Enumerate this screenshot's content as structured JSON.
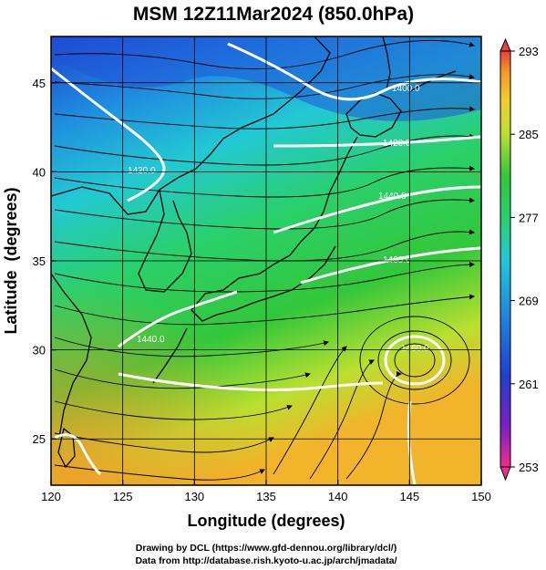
{
  "title": "MSM 12Z11Mar2024 (850.0hPa)",
  "axes": {
    "xlabel": "Longitude (degrees)",
    "ylabel": "Latitude  (degrees)",
    "x_ticks": [
      120,
      125,
      130,
      135,
      140,
      145,
      150
    ],
    "y_ticks": [
      25,
      30,
      35,
      40,
      45
    ],
    "xlim": [
      120,
      150
    ],
    "ylim": [
      22.4,
      47.6
    ]
  },
  "colorbar": {
    "labels": [
      "293",
      "285",
      "277",
      "269",
      "261",
      "253"
    ],
    "range": [
      253,
      293
    ],
    "colors": [
      "#ee2c8c",
      "#7a1fc4",
      "#1f3fd0",
      "#1f8ee0",
      "#22c9d3",
      "#2ad06a",
      "#33c73a",
      "#b9e030",
      "#f2cf2a",
      "#f39a28",
      "#e8403a"
    ]
  },
  "contours": {
    "labels": [
      "1400.0",
      "1420.0",
      "1440.0",
      "1460.0",
      "1460.0",
      "1440.0",
      "1420.0"
    ]
  },
  "credits": {
    "line1": "Drawing by DCL (https://www.gfd-dennou.org/library/dcl/)",
    "line2": "Data from http://database.rish.kyoto-u.ac.jp/arch/jmadata/"
  }
}
